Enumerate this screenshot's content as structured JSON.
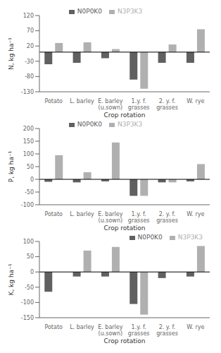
{
  "chart_data": [
    {
      "type": "bar",
      "categories": [
        "Potato",
        "L. barley",
        "E. barley\n(u.sown)",
        "1.y. f.\ngrasses",
        "2. y. f.\ngrasses",
        "W. rye"
      ],
      "series": [
        {
          "name": "N0P0K0",
          "color": "#606060",
          "values": [
            -40,
            -35,
            -20,
            -90,
            -35,
            -35
          ]
        },
        {
          "name": "N3P3K3",
          "color": "#b0b0b0",
          "values": [
            30,
            32,
            10,
            -120,
            25,
            75
          ]
        }
      ],
      "xlabel": "Crop rotation",
      "ylabel": "N, kg ha⁻¹",
      "ylim": [
        -130,
        120
      ],
      "yticks": [
        -130,
        -80,
        -30,
        20,
        70,
        120
      ],
      "grid": false,
      "legend": "upper center"
    },
    {
      "type": "bar",
      "categories": [
        "Potato",
        "L. barley",
        "E. barley\n(u.sown)",
        "1.y. f.\ngrasses",
        "2. y. f.\ngrasses",
        "W. rye"
      ],
      "series": [
        {
          "name": "N0P0K0",
          "color": "#606060",
          "values": [
            -10,
            -12,
            -8,
            -65,
            -12,
            -8
          ]
        },
        {
          "name": "N3P3K3",
          "color": "#b0b0b0",
          "values": [
            95,
            28,
            145,
            -65,
            -12,
            60
          ]
        }
      ],
      "xlabel": "Crop rotation",
      "ylabel": "P, kg ha⁻¹",
      "ylim": [
        -100,
        200
      ],
      "yticks": [
        -100,
        -50,
        0,
        50,
        100,
        150,
        200
      ],
      "grid": false,
      "legend": "upper center"
    },
    {
      "type": "bar",
      "categories": [
        "Potato",
        "L. barley",
        "E. barley\n(u.sown)",
        "1.y. f.\ngrasses",
        "2. y. f.\ngrasses",
        "W. rye"
      ],
      "series": [
        {
          "name": "N0P0K0",
          "color": "#606060",
          "values": [
            -65,
            -15,
            -15,
            -105,
            -20,
            -15
          ]
        },
        {
          "name": "N3P3K3",
          "color": "#b0b0b0",
          "values": [
            0,
            70,
            82,
            -140,
            0,
            85
          ]
        }
      ],
      "xlabel": "Crop rotation",
      "ylabel": "K, kg ha⁻¹",
      "ylim": [
        -150,
        100
      ],
      "yticks": [
        -150,
        -100,
        -50,
        0,
        50,
        100
      ],
      "grid": false,
      "legend": "upper right"
    }
  ]
}
